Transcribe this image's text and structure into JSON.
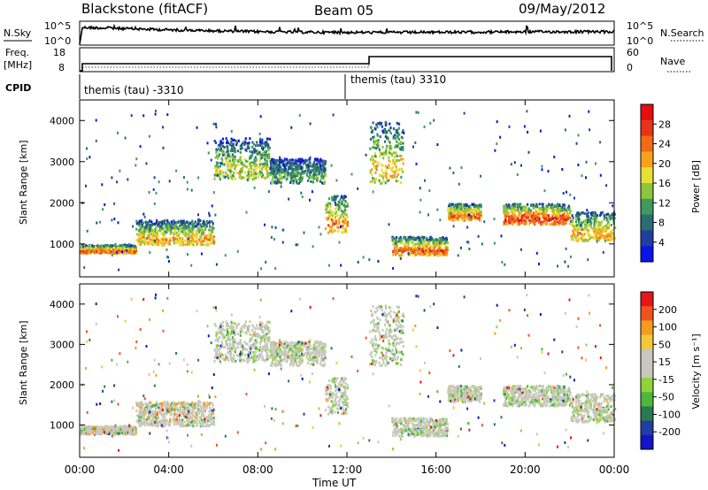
{
  "header": {
    "radar": "Blackstone (fitACF)",
    "beam": "Beam 05",
    "date": "09/May/2012"
  },
  "top_panel": {
    "left_label": "N.Sky",
    "left_ticks": [
      "10^5",
      "10^0"
    ],
    "right_ticks": [
      "10^5",
      "10^0"
    ],
    "right_label": "N.Search"
  },
  "freq_panel": {
    "left_label_1": "Freq.",
    "left_label_2": "[MHz]",
    "left_ticks": [
      "18",
      "8"
    ],
    "right_ticks": [
      "60",
      "0"
    ],
    "right_label": "Nave"
  },
  "cpid": {
    "label": "CPID",
    "modes": [
      "themis (tau) -3310",
      "themis (tau) 3310"
    ]
  },
  "colors": {
    "power": [
      "#0a14e6",
      "#1f3fa0",
      "#2a6e70",
      "#3e9a60",
      "#8dc63a",
      "#e7e034",
      "#f7a21d",
      "#f36a15",
      "#e8331a",
      "#e60e0e"
    ],
    "velocity": [
      "#e51616",
      "#f0541c",
      "#f59b1e",
      "#f3c93a",
      "#c8c8c0",
      "#c8c8c0",
      "#8fd43a",
      "#4fb83a",
      "#2a7a50",
      "#1f3fa0",
      "#1414c8"
    ]
  },
  "chart_data": [
    {
      "type": "heatmap",
      "name": "power",
      "ylabel": "Slant Range [km]",
      "yticks": [
        "1000",
        "2000",
        "3000",
        "4000"
      ],
      "ylim": [
        200,
        4500
      ],
      "xlim_hours": [
        0,
        24
      ],
      "colorbar_label": "Power [dB]",
      "colorbar_ticks": [
        "4",
        "8",
        "12",
        "16",
        "20",
        "24",
        "28"
      ],
      "bands": [
        {
          "t0": 0.0,
          "t1": 2.5,
          "r0": 800,
          "r1": 1000,
          "peak": 24
        },
        {
          "t0": 2.5,
          "t1": 6.0,
          "r0": 1000,
          "r1": 1600,
          "peak": 20
        },
        {
          "t0": 6.0,
          "t1": 8.5,
          "r0": 2600,
          "r1": 3600,
          "peak": 16
        },
        {
          "t0": 8.5,
          "t1": 11.0,
          "r0": 2500,
          "r1": 3100,
          "peak": 12
        },
        {
          "t0": 11.0,
          "t1": 12.0,
          "r0": 1300,
          "r1": 2200,
          "peak": 22
        },
        {
          "t0": 13.0,
          "t1": 14.5,
          "r0": 2500,
          "r1": 4000,
          "peak": 18
        },
        {
          "t0": 14.0,
          "t1": 16.5,
          "r0": 750,
          "r1": 1200,
          "peak": 24
        },
        {
          "t0": 16.5,
          "t1": 18.0,
          "r0": 1600,
          "r1": 2000,
          "peak": 24
        },
        {
          "t0": 19.0,
          "t1": 22.0,
          "r0": 1500,
          "r1": 2000,
          "peak": 26
        },
        {
          "t0": 22.0,
          "t1": 24.0,
          "r0": 1100,
          "r1": 1800,
          "peak": 20
        }
      ]
    },
    {
      "type": "heatmap",
      "name": "velocity",
      "xlabel": "Time UT",
      "ylabel": "Slant Range [km]",
      "yticks": [
        "1000",
        "2000",
        "3000",
        "4000"
      ],
      "ylim": [
        200,
        4500
      ],
      "xlim_hours": [
        0,
        24
      ],
      "xticks": [
        "00:00",
        "04:00",
        "08:00",
        "12:00",
        "16:00",
        "20:00",
        "00:00"
      ],
      "colorbar_label": "Velocity [m s⁻¹]",
      "colorbar_ticks": [
        "200",
        "100",
        "50",
        "15",
        "-15",
        "-50",
        "-100",
        "-200"
      ]
    }
  ]
}
